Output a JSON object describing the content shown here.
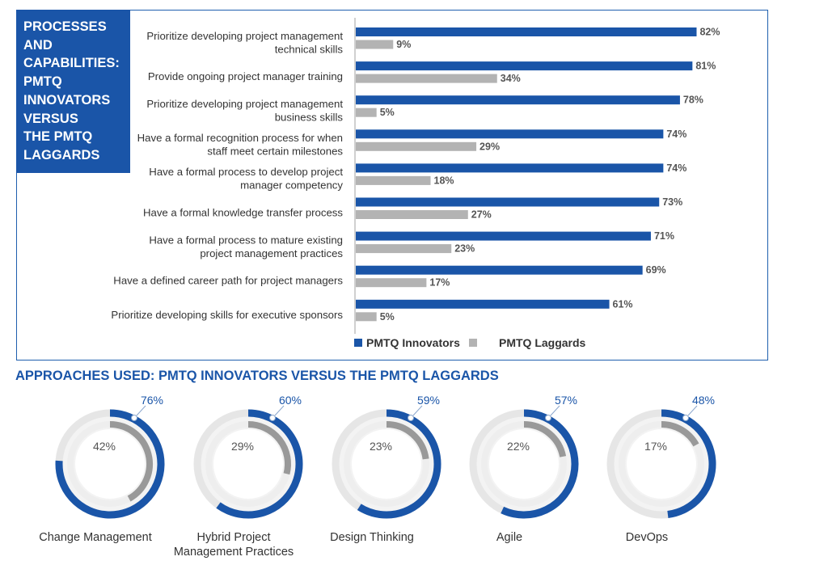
{
  "section1": {
    "title_lines": [
      "PROCESSES",
      "AND",
      "CAPABILITIES:",
      "PMTQ",
      "INNOVATORS",
      "VERSUS",
      "THE PMTQ",
      "LAGGARDS"
    ]
  },
  "section2": {
    "title": "APPROACHES USED: PMTQ INNOVATORS VERSUS THE PMTQ LAGGARDS"
  },
  "colors": {
    "innovators": "#1a55a8",
    "laggards": "#b3b3b3",
    "track": "#e6e6e6",
    "text": "#333333"
  },
  "chart_data": [
    {
      "type": "bar",
      "orientation": "horizontal",
      "categories": [
        [
          "Prioritize developing project management",
          "technical skills"
        ],
        [
          "Provide ongoing project manager training"
        ],
        [
          "Prioritize developing project management",
          "business skills"
        ],
        [
          "Have a formal recognition process for when",
          "staff meet certain milestones"
        ],
        [
          "Have a formal process to develop project",
          "manager competency"
        ],
        [
          "Have a formal knowledge transfer process"
        ],
        [
          "Have a formal process to mature existing",
          "project management practices"
        ],
        [
          "Have a defined career path for project managers"
        ],
        [
          "Prioritize developing skills for executive sponsors"
        ]
      ],
      "series": [
        {
          "name": "PMTQ Innovators",
          "values": [
            82,
            81,
            78,
            74,
            74,
            73,
            71,
            69,
            61
          ],
          "labels": [
            "82%",
            "81%",
            "78%",
            "74%",
            "74%",
            "73%",
            "71%",
            "69%",
            "61%"
          ]
        },
        {
          "name": "PMTQ Laggards",
          "values": [
            9,
            34,
            5,
            29,
            18,
            27,
            23,
            17,
            5
          ],
          "labels": [
            "9%",
            "34%",
            "5%",
            "29%",
            "18%",
            "27%",
            "23%",
            "17%",
            "5%"
          ]
        }
      ],
      "xlim": [
        0,
        100
      ],
      "legend": "bottom"
    },
    {
      "type": "pie",
      "style": "donut",
      "categories": [
        [
          "Change Management"
        ],
        [
          "Hybrid Project",
          "Management Practices"
        ],
        [
          "Design Thinking"
        ],
        [
          "Agile"
        ],
        [
          "DevOps"
        ]
      ],
      "series": [
        {
          "name": "PMTQ Innovators",
          "values": [
            76,
            60,
            59,
            57,
            48
          ],
          "labels": [
            "76%",
            "60%",
            "59%",
            "57%",
            "48%"
          ]
        },
        {
          "name": "PMTQ Laggards",
          "values": [
            42,
            29,
            23,
            22,
            17
          ],
          "labels": [
            "42%",
            "29%",
            "23%",
            "22%",
            "17%"
          ]
        }
      ]
    }
  ]
}
